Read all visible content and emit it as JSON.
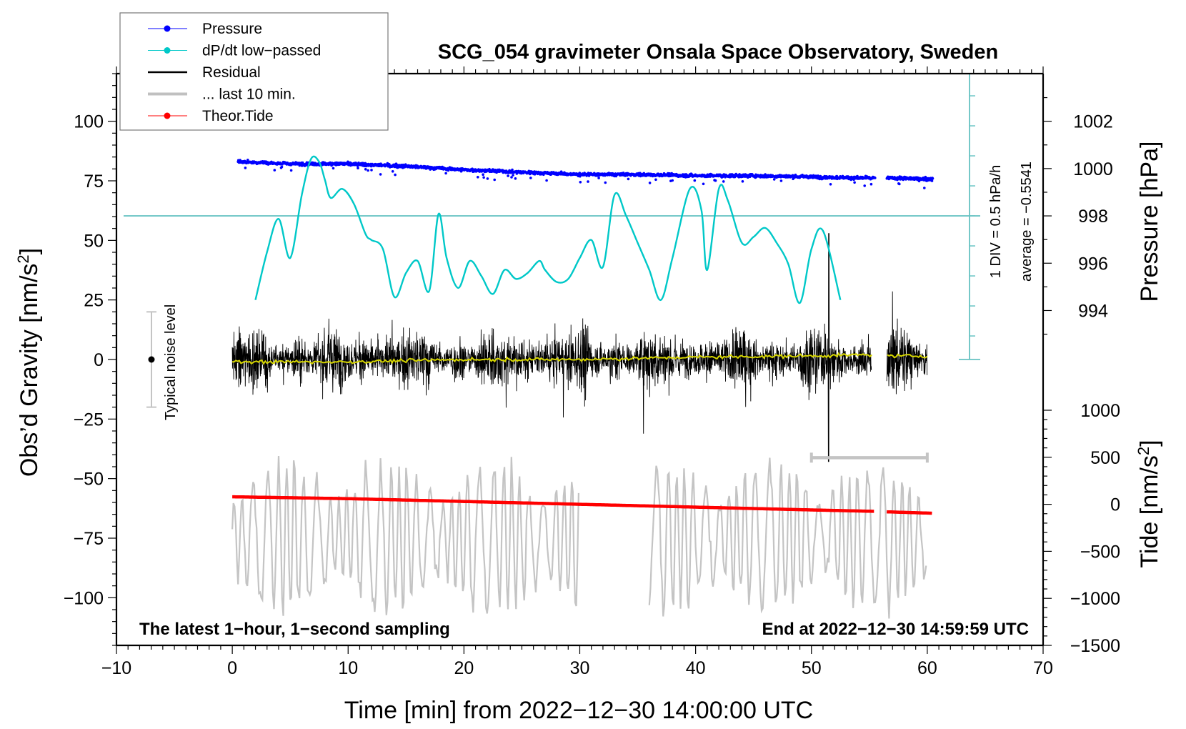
{
  "chart_data": {
    "type": "line",
    "title": "SCG_054 gravimeter Onsala Space Observatory, Sweden",
    "xlabel": "Time [min] from 2022−12−30 14:00:00 UTC",
    "ylabel_left": "Obs’d Gravity [nm/s²]",
    "ylabel_right_top": "Pressure [hPa]",
    "ylabel_right_bottom": "Tide [nm/s²]",
    "xlim": [
      -10,
      70
    ],
    "ylim_left": [
      -120,
      120
    ],
    "ylim_pressure": [
      992,
      1004
    ],
    "ylim_tide": [
      -1500,
      1000
    ],
    "x_ticks": [
      -10,
      0,
      10,
      20,
      30,
      40,
      50,
      60,
      70
    ],
    "x_tick_labels": [
      "−10",
      "0",
      "10",
      "20",
      "30",
      "40",
      "50",
      "60",
      "70"
    ],
    "left_ticks": [
      100,
      75,
      50,
      25,
      0,
      -25,
      -50,
      -75,
      -100
    ],
    "left_tick_labels": [
      "100",
      "75",
      "50",
      "25",
      "0",
      "−25",
      "−50",
      "−75",
      "−100"
    ],
    "pressure_ticks": [
      1002,
      1000,
      998,
      996,
      994
    ],
    "pressure_tick_labels": [
      "1002",
      "1000",
      "998",
      "996",
      "994"
    ],
    "tide_ticks": [
      1000,
      500,
      0,
      -500,
      -1000,
      -1500
    ],
    "tide_tick_labels": [
      "1000",
      "500",
      "0",
      "−500",
      "−1000",
      "−1500"
    ],
    "legend": {
      "placement": "top-left",
      "entries": [
        {
          "label": "Pressure",
          "color": "#0000ff",
          "marker": "dot"
        },
        {
          "label": "dP/dt low−passed",
          "color": "#00c8c8",
          "marker": "dot"
        },
        {
          "label": "Residual",
          "color": "#000000",
          "marker": "line"
        },
        {
          "label": "... last 10 min.",
          "color": "#c0c0c0",
          "marker": "thick-line"
        },
        {
          "label": "Theor.Tide",
          "color": "#ff0000",
          "marker": "dot"
        }
      ]
    },
    "series": [
      {
        "name": "Pressure",
        "axis": "pressure",
        "color": "#0000ff",
        "x": [
          0.5,
          5,
          10,
          15,
          20,
          25,
          30,
          35,
          40,
          45,
          50,
          55,
          57,
          60.5
        ],
        "values": [
          1000.3,
          1000.2,
          1000.2,
          1000.1,
          999.95,
          999.85,
          999.75,
          999.75,
          999.7,
          999.7,
          999.65,
          999.6,
          999.6,
          999.55
        ],
        "gaps": [
          [
            55.5,
            56.5
          ]
        ]
      },
      {
        "name": "dP/dt low-passed",
        "axis": "dpdt",
        "units": "hPa/h",
        "color": "#00c8c8",
        "x": [
          2,
          3,
          4,
          5,
          6,
          6.8,
          7.5,
          8,
          8.5,
          9.5,
          10.5,
          11.5,
          12,
          13,
          14,
          15,
          16,
          17,
          17.8,
          18.5,
          19.5,
          20.5,
          21.5,
          22.5,
          23.5,
          24.5,
          25.5,
          26.5,
          27,
          28,
          29,
          30,
          31,
          32,
          33,
          34,
          35,
          36,
          37,
          38,
          39.5,
          40.5,
          41,
          42,
          42.8,
          44,
          45,
          46,
          47,
          48,
          49,
          50,
          51,
          52.5
        ],
        "values": [
          -1.4,
          -0.6,
          -0.05,
          -0.7,
          0.35,
          0.95,
          0.9,
          0.6,
          0.3,
          0.45,
          0.2,
          -0.3,
          -0.4,
          -0.55,
          -1.35,
          -0.95,
          -0.75,
          -1.25,
          0.03,
          -0.7,
          -1.2,
          -0.75,
          -1.0,
          -1.3,
          -0.9,
          -1.05,
          -0.95,
          -0.75,
          -0.9,
          -1.1,
          -1.05,
          -0.7,
          -0.4,
          -0.85,
          0.35,
          0.0,
          -0.45,
          -0.9,
          -1.4,
          -0.7,
          0.45,
          0.1,
          -0.9,
          0.45,
          0.25,
          -0.45,
          -0.35,
          -0.2,
          -0.45,
          -0.8,
          -1.45,
          -0.55,
          -0.25,
          -1.4
        ]
      },
      {
        "name": "Residual",
        "axis": "left",
        "color": "#000000",
        "envelope": "approx ±15 nm/s² with spikes to +53 and −45",
        "x_range": [
          0,
          60
        ],
        "gaps": [
          [
            55.2,
            56.5
          ]
        ]
      },
      {
        "name": "Residual smoothed",
        "axis": "left",
        "color": "#d6d600",
        "x": [
          0,
          10,
          20,
          30,
          40,
          50,
          55,
          57,
          60
        ],
        "values": [
          -1,
          -1,
          0,
          0,
          1,
          1.5,
          2,
          1.5,
          1.5
        ]
      },
      {
        "name": "... last 10 min.",
        "axis": "left",
        "color": "#c0c0c0",
        "note": "previous 10-minute overlay, centered near −75 nm/s², amplitude about ±30",
        "x_ranges": [
          [
            0,
            30
          ],
          [
            36,
            60
          ]
        ]
      },
      {
        "name": "Theor.Tide",
        "axis": "tide",
        "color": "#ff0000",
        "x": [
          0,
          10,
          20,
          30,
          40,
          50,
          55.5,
          56.5,
          60.5
        ],
        "values": [
          80,
          60,
          30,
          0,
          -30,
          -60,
          -75,
          -80,
          -95
        ],
        "gaps": [
          [
            55.5,
            56.5
          ]
        ]
      }
    ],
    "annotations": {
      "dpdt_scale": "1 DIV = 0.5 hPa/h",
      "dpdt_average": "average = −0.5541",
      "noise_label": "Typical noise level",
      "noise_level": {
        "center": 0,
        "range": [
          -20,
          20
        ]
      },
      "last10_bracket": {
        "x_range": [
          50,
          60
        ],
        "y": -40
      },
      "sampling_note": "The latest 1−hour, 1−second sampling",
      "end_note": "End at 2022−12−30 14:59:59 UTC"
    }
  }
}
